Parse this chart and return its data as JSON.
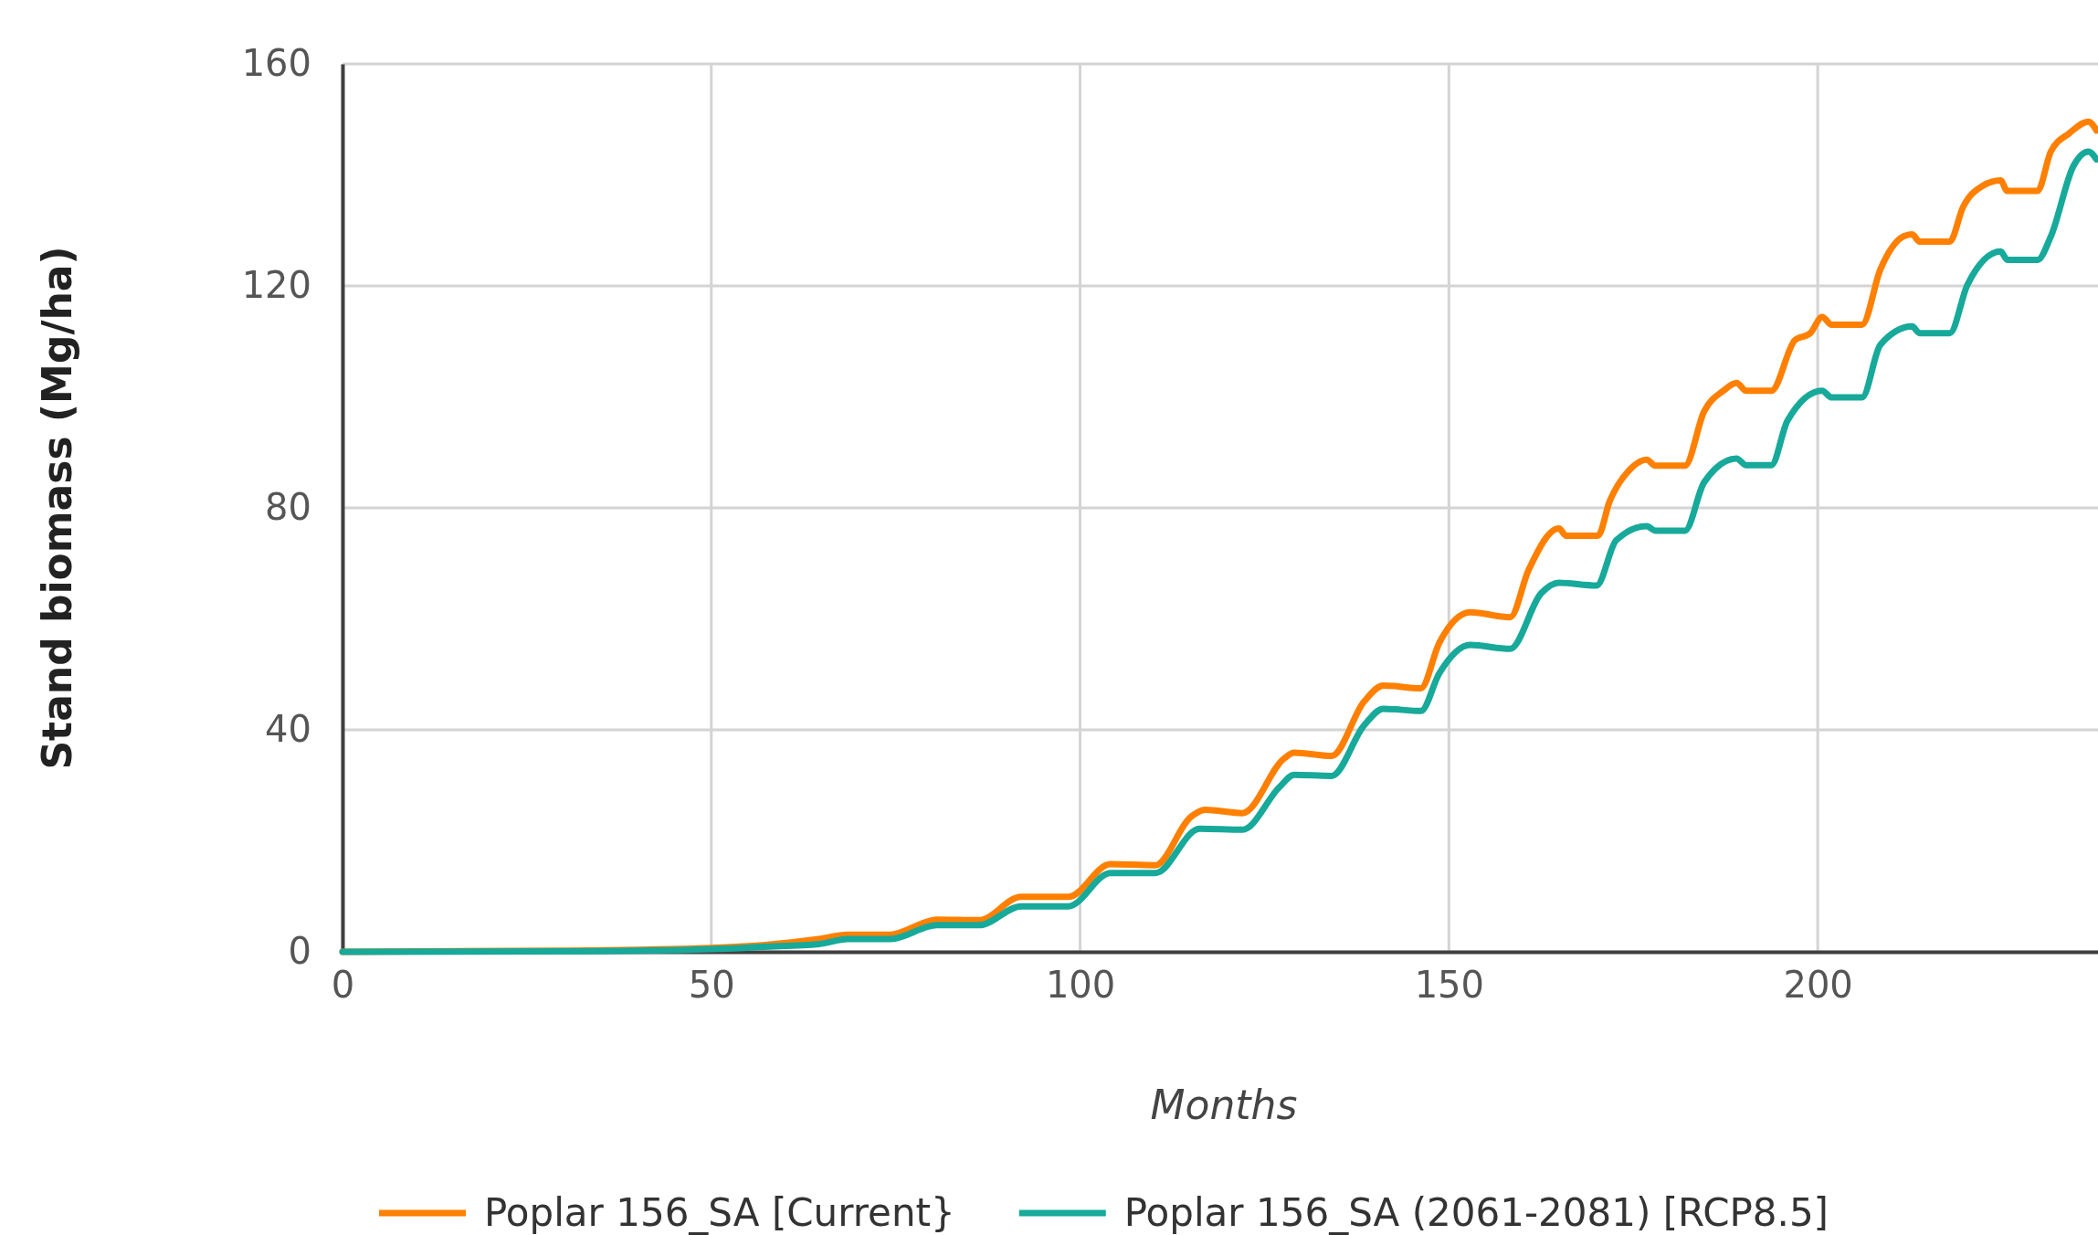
{
  "chart_data": {
    "type": "line",
    "xlabel": "Months",
    "ylabel": "Stand biomass (Mg/ha)",
    "xlim": [
      0,
      238
    ],
    "ylim": [
      0,
      160
    ],
    "xticks": [
      0,
      50,
      100,
      150,
      200
    ],
    "yticks": [
      0,
      40,
      80,
      120,
      160
    ],
    "grid": true,
    "legend": "bottom",
    "marker": "none",
    "line_style": "solid",
    "series": [
      {
        "name": "Poplar 156_SA [Current}",
        "color": "#ff8000",
        "x": [
          0,
          30,
          50,
          57,
          64.6,
          68.5,
          74.2,
          80.6,
          86.3,
          92,
          98.4,
          104.1,
          110.2,
          115,
          116.9,
          122,
          127.7,
          129,
          134.1,
          138.5,
          141.1,
          146.2,
          148.7,
          152.9,
          158.3,
          160.8,
          164.9,
          165.9,
          170.2,
          171.8,
          174.6,
          176.8,
          178,
          182,
          184.6,
          187.2,
          189,
          190.3,
          193.7,
          196.9,
          199,
          200.6,
          201.9,
          206,
          208.5,
          211.6,
          212.8,
          213.8,
          217.9,
          219.7,
          222.3,
          224.8,
          225.7,
          229.8,
          231.6,
          234.1,
          236.7,
          237.8
        ],
        "values": [
          0,
          0.2,
          0.7,
          1.2,
          2.3,
          3.1,
          3.1,
          5.8,
          5.7,
          9.9,
          9.9,
          15.8,
          15.6,
          24.3,
          25.6,
          25,
          34.9,
          35.9,
          35.3,
          45.1,
          48,
          47.5,
          55.7,
          61.2,
          60.3,
          68.8,
          76.3,
          75,
          75,
          81.2,
          87,
          88.7,
          87.6,
          87.6,
          97.4,
          101.1,
          102.5,
          101.1,
          101.1,
          110.2,
          111.5,
          114.4,
          113,
          113,
          123,
          128.9,
          129.3,
          128,
          128,
          134.2,
          138,
          139,
          137.1,
          137.1,
          144.2,
          147.5,
          149.6,
          148
        ]
      },
      {
        "name": "Poplar 156_SA (2061-2081) [RCP8.5]",
        "color": "#17a99a",
        "x": [
          0,
          30,
          50,
          57,
          64.6,
          68.5,
          74.2,
          80.6,
          86.3,
          92,
          98.4,
          104.1,
          110.2,
          116.2,
          122,
          127.1,
          129,
          134.1,
          138.5,
          141.1,
          146.2,
          148.7,
          152.9,
          158.3,
          162.5,
          164.9,
          170,
          172.7,
          176.8,
          178,
          182,
          184.6,
          189,
          190.3,
          193.7,
          195.9,
          200.6,
          201.9,
          206,
          208.5,
          212.8,
          213.8,
          217.9,
          220.3,
          224.8,
          225.7,
          229.8,
          231.6,
          234.7,
          236.7,
          237.8
        ],
        "values": [
          0,
          0.1,
          0.5,
          0.9,
          1.4,
          2.3,
          2.3,
          4.8,
          4.8,
          8.2,
          8.2,
          14.2,
          14.2,
          22.2,
          22,
          29.8,
          31.9,
          31.7,
          40.8,
          43.8,
          43.4,
          50.2,
          55.3,
          54.6,
          64.6,
          66.5,
          66,
          74.2,
          76.7,
          75.9,
          75.9,
          84.6,
          88.9,
          87.7,
          87.7,
          95.7,
          101.1,
          99.9,
          99.9,
          109.4,
          112.7,
          111.5,
          111.5,
          120.2,
          126.2,
          124.7,
          124.7,
          128.9,
          141.7,
          144.2,
          142.8
        ]
      }
    ]
  }
}
